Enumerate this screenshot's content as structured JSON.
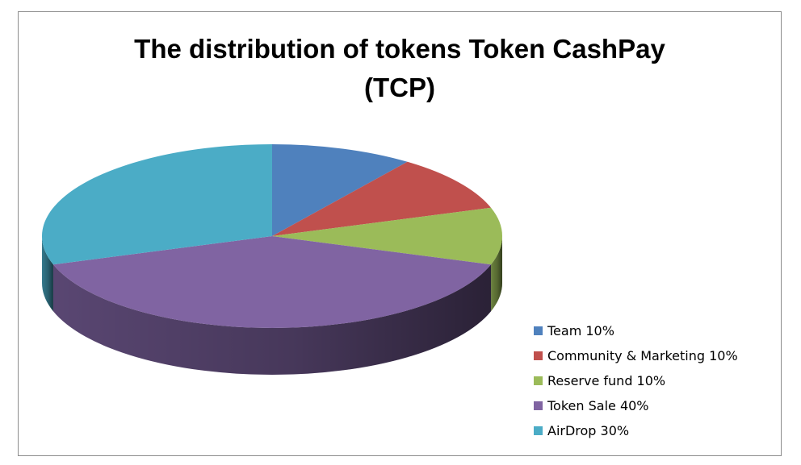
{
  "chart_data": {
    "type": "pie",
    "title_lines": [
      "The distribution of tokens Token CashPay",
      "(TCP)"
    ],
    "legend_position": "right",
    "slices": [
      {
        "label": "Team 10%",
        "value": 10,
        "color": "#4F81BD",
        "side": "#3A6090"
      },
      {
        "label": "Community & Marketing 10%",
        "value": 10,
        "color": "#C0504D",
        "side": "#8E3A38"
      },
      {
        "label": "Reserve fund 10%",
        "value": 10,
        "color": "#9BBB59",
        "side": "#728A41"
      },
      {
        "label": "Token Sale 40%",
        "value": 40,
        "color": "#8064A2",
        "side": "#5E4A78"
      },
      {
        "label": "AirDrop 30%",
        "value": 30,
        "color": "#4BACC6",
        "side": "#367F93"
      }
    ]
  }
}
